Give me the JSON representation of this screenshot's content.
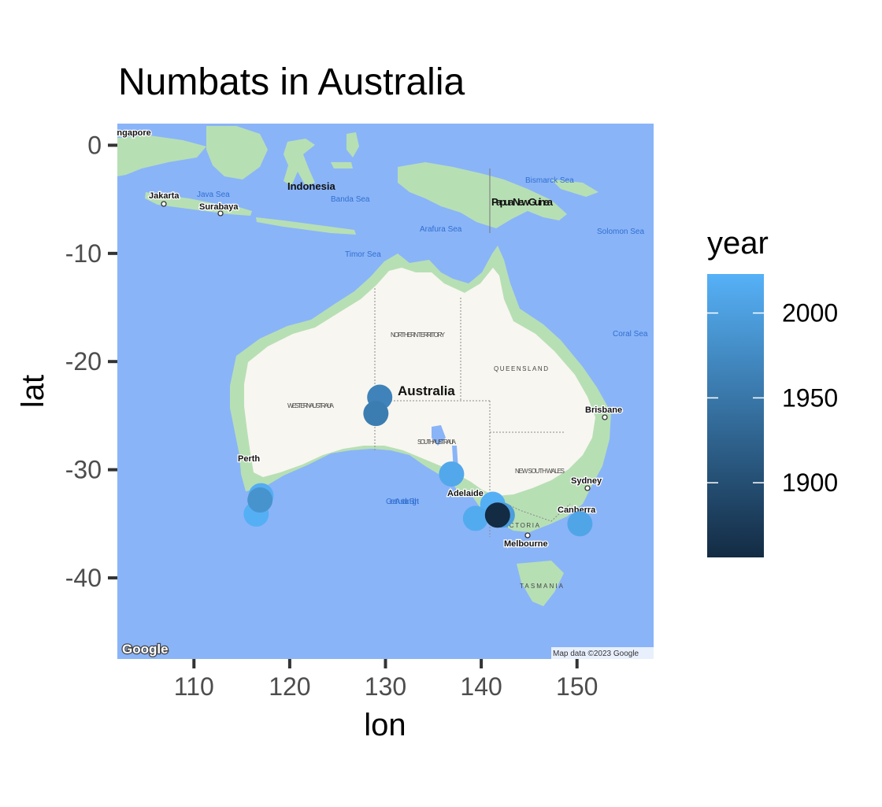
{
  "title": "Numbats in Australia",
  "x_axis_title": "lon",
  "y_axis_title": "lat",
  "legend": {
    "title": "year",
    "labels": [
      "2000",
      "1950",
      "1900"
    ]
  },
  "map": {
    "countries": [
      "Indonesia",
      "Papua New Guinea",
      "Australia"
    ],
    "cities": [
      "Singapore",
      "Jakarta",
      "Surabaya",
      "Perth",
      "Adelaide",
      "Sydney",
      "Brisbane",
      "Melbourne",
      "Canberra"
    ],
    "seas": [
      "Java Sea",
      "Banda Sea",
      "Timor Sea",
      "Arafura Sea",
      "Bismarck Sea",
      "Solomon Sea",
      "Coral Sea",
      "Great Australian Bight"
    ],
    "regions": [
      "NORTHERN TERRITORY",
      "WESTERN AUSTRALIA",
      "SOUTH AUSTRALIA",
      "QUEENSLAND",
      "NEW SOUTH WALES",
      "VICTORIA",
      "TASMANIA"
    ],
    "attribution": "Map data ©2023 Google",
    "logo": "Google",
    "colors": {
      "water": "#8ab4f8",
      "land": "#f8f6f0",
      "vegetation": "#b7dfb4",
      "legend_low": "#132b43",
      "legend_high": "#56b1f7"
    }
  },
  "chart_data": {
    "type": "scatter",
    "title": "Numbats in Australia",
    "xlabel": "lon",
    "ylabel": "lat",
    "xlim": [
      102,
      158
    ],
    "ylim": [
      -47.5,
      2
    ],
    "x_ticks": [
      110,
      120,
      130,
      140,
      150
    ],
    "y_ticks": [
      0,
      -10,
      -20,
      -30,
      -40
    ],
    "color_scale": {
      "variable": "year",
      "low_color": "#132b43",
      "high_color": "#56b1f7",
      "range": [
        1856,
        2023
      ],
      "breaks": [
        1900,
        1950,
        2000
      ]
    },
    "points": [
      {
        "lon": 129.4,
        "lat": -23.3,
        "year": 1966
      },
      {
        "lon": 129.0,
        "lat": -24.8,
        "year": 1958
      },
      {
        "lon": 136.9,
        "lat": -30.4,
        "year": 2012
      },
      {
        "lon": 116.9,
        "lat": -32.8,
        "year": 1985
      },
      {
        "lon": 117.0,
        "lat": -32.4,
        "year": 2018
      },
      {
        "lon": 116.5,
        "lat": -34.1,
        "year": 2020
      },
      {
        "lon": 142.2,
        "lat": -34.2,
        "year": 1998
      },
      {
        "lon": 139.4,
        "lat": -34.5,
        "year": 2016
      },
      {
        "lon": 141.7,
        "lat": -34.2,
        "year": 1856
      },
      {
        "lon": 141.2,
        "lat": -33.2,
        "year": 2021
      },
      {
        "lon": 150.3,
        "lat": -35.0,
        "year": 2008
      }
    ]
  }
}
